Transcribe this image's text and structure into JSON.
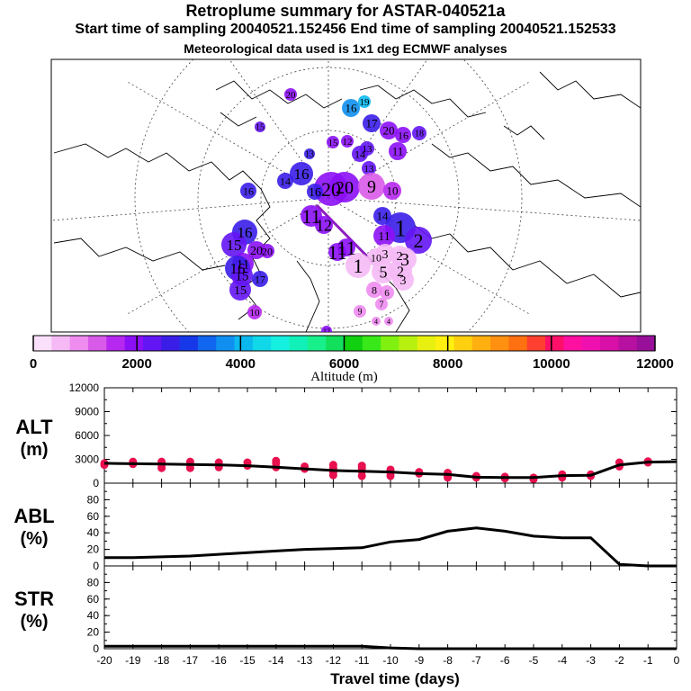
{
  "title": "Retroplume summary for ASTAR-040521a",
  "subtitle": "Start time of sampling 20040521.152456     End time of sampling 20040521.152533",
  "subtitle2": "Meteorological data used is 1x1 deg ECMWF analyses",
  "colors": {
    "line": "#000000",
    "dots": "#e8104e",
    "trajectory": "#8e1fbf",
    "coast": "#000000"
  },
  "chart_data": [
    {
      "type": "colorbar",
      "name": "altitude-colorbar",
      "xlabel": "Altitude (m)",
      "ticks": [
        0,
        2000,
        4000,
        6000,
        8000,
        10000,
        12000
      ],
      "range": [
        0,
        12000
      ],
      "colors": [
        "#fbe0fb",
        "#f5baf5",
        "#ee8cef",
        "#d85ae8",
        "#b628ef",
        "#8c10f6",
        "#6415f4",
        "#3a1ee8",
        "#1638e8",
        "#1066ee",
        "#0f90f0",
        "#0bb8ee",
        "#10d8e8",
        "#16f0e0",
        "#10f0b8",
        "#18f08c",
        "#12e05c",
        "#10d010",
        "#38e818",
        "#80f010",
        "#b8f010",
        "#e8f010",
        "#fff010",
        "#ffd010",
        "#ffb010",
        "#ff9010",
        "#ff7010",
        "#ff4030",
        "#ff1068",
        "#ff10a0",
        "#f010b0",
        "#d810a8",
        "#b810a0",
        "#98109a"
      ]
    },
    {
      "type": "scatter",
      "name": "retroplume-map",
      "description_labels": [
        "1",
        "2",
        "3",
        "4",
        "5",
        "6",
        "7",
        "8",
        "9",
        "10",
        "11",
        "12",
        "13",
        "14",
        "15",
        "16",
        "17",
        "18",
        "19",
        "20"
      ],
      "clusters": [
        {
          "label": "20",
          "alt": 2000
        },
        {
          "label": "19",
          "alt": 2200
        },
        {
          "label": "18",
          "alt": 2400
        },
        {
          "label": "17",
          "alt": 2600
        },
        {
          "label": "16",
          "alt": 2800
        },
        {
          "label": "15",
          "alt": 2300
        },
        {
          "label": "14",
          "alt": 2500
        },
        {
          "label": "13",
          "alt": 2700
        },
        {
          "label": "12",
          "alt": 2100
        },
        {
          "label": "11",
          "alt": 1900
        },
        {
          "label": "10",
          "alt": 1600
        },
        {
          "label": "9",
          "alt": 1400
        },
        {
          "label": "8",
          "alt": 1200
        },
        {
          "label": "7",
          "alt": 900
        },
        {
          "label": "6",
          "alt": 800
        },
        {
          "label": "5",
          "alt": 600
        },
        {
          "label": "4",
          "alt": 1000
        },
        {
          "label": "3",
          "alt": 1100
        },
        {
          "label": "2",
          "alt": 2300
        },
        {
          "label": "1",
          "alt": 2600
        }
      ]
    },
    {
      "type": "line",
      "name": "alt-panel",
      "ylabel": "ALT\n(m)",
      "ylabel_top": "ALT",
      "ylabel_bottom": "(m)",
      "yticks": [
        0,
        3000,
        6000,
        9000,
        12000
      ],
      "ylim": [
        0,
        12000
      ],
      "x": [
        0,
        -1,
        -2,
        -3,
        -4,
        -5,
        -6,
        -7,
        -8,
        -9,
        -10,
        -11,
        -12,
        -13,
        -14,
        -15,
        -16,
        -17,
        -18,
        -19,
        -20
      ],
      "values": [
        2700,
        2650,
        2300,
        1000,
        950,
        700,
        700,
        750,
        1100,
        1200,
        1400,
        1500,
        1600,
        1800,
        2000,
        2200,
        2300,
        2350,
        2400,
        2450,
        2500
      ],
      "dots": [
        {
          "x": -1,
          "y": 2600
        },
        {
          "x": -1,
          "y": 2750
        },
        {
          "x": -2,
          "y": 2100
        },
        {
          "x": -2,
          "y": 2600
        },
        {
          "x": -3,
          "y": 900
        },
        {
          "x": -3,
          "y": 1100
        },
        {
          "x": -4,
          "y": 700
        },
        {
          "x": -4,
          "y": 900
        },
        {
          "x": -4,
          "y": 1100
        },
        {
          "x": -5,
          "y": 500
        },
        {
          "x": -5,
          "y": 700
        },
        {
          "x": -6,
          "y": 600
        },
        {
          "x": -6,
          "y": 800
        },
        {
          "x": -7,
          "y": 700
        },
        {
          "x": -7,
          "y": 900
        },
        {
          "x": -8,
          "y": 900
        },
        {
          "x": -8,
          "y": 1300
        },
        {
          "x": -8,
          "y": 700
        },
        {
          "x": -9,
          "y": 1200
        },
        {
          "x": -9,
          "y": 1400
        },
        {
          "x": -10,
          "y": 1300
        },
        {
          "x": -10,
          "y": 1700
        },
        {
          "x": -10,
          "y": 900
        },
        {
          "x": -11,
          "y": 1500
        },
        {
          "x": -11,
          "y": 900
        },
        {
          "x": -11,
          "y": 1900
        },
        {
          "x": -11,
          "y": 2200
        },
        {
          "x": -12,
          "y": 1400
        },
        {
          "x": -12,
          "y": 1900
        },
        {
          "x": -12,
          "y": 2300
        },
        {
          "x": -12,
          "y": 1000
        },
        {
          "x": -13,
          "y": 1800
        },
        {
          "x": -13,
          "y": 2100
        },
        {
          "x": -14,
          "y": 2000
        },
        {
          "x": -14,
          "y": 2500
        },
        {
          "x": -14,
          "y": 2800
        },
        {
          "x": -15,
          "y": 2200
        },
        {
          "x": -15,
          "y": 2600
        },
        {
          "x": -16,
          "y": 2300
        },
        {
          "x": -16,
          "y": 2600
        },
        {
          "x": -16,
          "y": 2000
        },
        {
          "x": -17,
          "y": 2300
        },
        {
          "x": -17,
          "y": 2700
        },
        {
          "x": -17,
          "y": 1900
        },
        {
          "x": -18,
          "y": 2300
        },
        {
          "x": -18,
          "y": 2700
        },
        {
          "x": -18,
          "y": 1900
        },
        {
          "x": -19,
          "y": 2400
        },
        {
          "x": -19,
          "y": 2700
        },
        {
          "x": -20,
          "y": 2500
        },
        {
          "x": -20,
          "y": 2300
        }
      ]
    },
    {
      "type": "line",
      "name": "abl-panel",
      "ylabel_top": "ABL",
      "ylabel_bottom": "(%)",
      "yticks": [
        0,
        20,
        40,
        60,
        80
      ],
      "ylim": [
        0,
        100
      ],
      "x": [
        0,
        -1,
        -2,
        -3,
        -4,
        -5,
        -6,
        -7,
        -8,
        -9,
        -10,
        -11,
        -12,
        -13,
        -14,
        -15,
        -16,
        -17,
        -18,
        -19,
        -20
      ],
      "values": [
        0,
        0,
        2,
        34,
        34,
        36,
        42,
        46,
        42,
        32,
        29,
        22,
        21,
        20,
        18,
        16,
        14,
        12,
        11,
        10,
        10
      ]
    },
    {
      "type": "line",
      "name": "str-panel",
      "ylabel_top": "STR",
      "ylabel_bottom": "(%)",
      "yticks": [
        0,
        20,
        40,
        60,
        80
      ],
      "ylim": [
        0,
        100
      ],
      "x": [
        0,
        -1,
        -2,
        -3,
        -4,
        -5,
        -6,
        -7,
        -8,
        -9,
        -10,
        -11,
        -12,
        -13,
        -14,
        -15,
        -16,
        -17,
        -18,
        -19,
        -20
      ],
      "values": [
        0,
        0,
        0,
        0,
        0,
        0,
        0,
        0,
        0,
        0,
        1,
        3,
        3,
        3,
        3,
        3,
        3,
        3,
        3,
        3,
        3
      ],
      "xlabel": "Travel time (days)",
      "xticks": [
        -20,
        -19,
        -18,
        -17,
        -16,
        -15,
        -14,
        -13,
        -12,
        -11,
        -10,
        -9,
        -8,
        -7,
        -6,
        -5,
        -4,
        -3,
        -2,
        -1,
        0
      ]
    }
  ]
}
